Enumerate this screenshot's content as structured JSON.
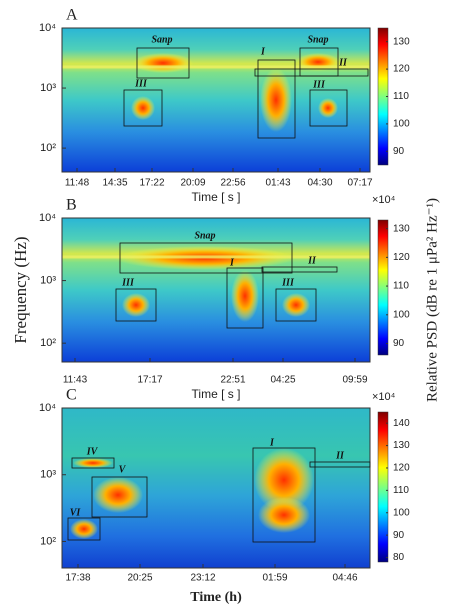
{
  "chart_data": [
    {
      "type": "heatmap",
      "panel_label": "A",
      "categories": [
        "11:48",
        "14:35",
        "17:22",
        "20:09",
        "22:56",
        "01:43",
        "04:30",
        "07:17"
      ],
      "xlabel": "Time [ s ]",
      "x_multiplier": "×10⁴",
      "y_scale": "log",
      "ylim": [
        40,
        10000
      ],
      "yticks": [
        {
          "value": 100,
          "label": "10²"
        },
        {
          "value": 1000,
          "label": "10³"
        },
        {
          "value": 10000,
          "label": "10⁴"
        }
      ],
      "clim": [
        85,
        135
      ],
      "cticks": [
        90,
        100,
        110,
        120,
        130
      ],
      "annotations": [
        "Sanp",
        "Snap",
        "I",
        "II",
        "III",
        "III"
      ]
    },
    {
      "type": "heatmap",
      "panel_label": "B",
      "categories": [
        "11:43",
        "17:17",
        "22:51",
        "04:25",
        "09:59"
      ],
      "xlabel": "Time [ s ]",
      "x_multiplier": "×10⁴",
      "ylabel": "Frequency (Hz)",
      "colorbar_label": "Relative PSD (dB re 1 μPa² Hz⁻¹)",
      "y_scale": "log",
      "ylim": [
        50,
        10000
      ],
      "yticks": [
        {
          "value": 100,
          "label": "10²"
        },
        {
          "value": 1000,
          "label": "10³"
        },
        {
          "value": 10000,
          "label": "10⁴"
        }
      ],
      "clim": [
        86,
        133
      ],
      "cticks": [
        90,
        100,
        110,
        120,
        130
      ],
      "annotations": [
        "Snap",
        "I",
        "II",
        "III",
        "III"
      ]
    },
    {
      "type": "heatmap",
      "panel_label": "C",
      "categories": [
        "17:38",
        "20:25",
        "23:12",
        "01:59",
        "04:46"
      ],
      "xlabel": "Time (h)",
      "y_scale": "log",
      "ylim": [
        40,
        10000
      ],
      "yticks": [
        {
          "value": 100,
          "label": "10²"
        },
        {
          "value": 1000,
          "label": "10³"
        },
        {
          "value": 10000,
          "label": "10⁴"
        }
      ],
      "clim": [
        78,
        145
      ],
      "cticks": [
        80,
        90,
        100,
        110,
        120,
        130,
        140
      ],
      "annotations": [
        "IV",
        "V",
        "VI",
        "I",
        "II"
      ]
    }
  ]
}
